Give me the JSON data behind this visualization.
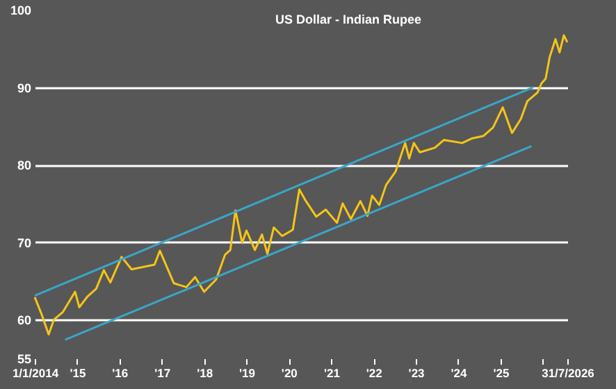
{
  "chart_data": {
    "type": "line",
    "title": "US Dollar - Indian Rupee",
    "xlim": [
      "2014-01-01",
      "2026-07-31"
    ],
    "xticks": [
      {
        "value": "2014-01-01",
        "label": "1/1/2014"
      },
      {
        "value": "2015-01-01",
        "label": "'15"
      },
      {
        "value": "2016-01-01",
        "label": "'16"
      },
      {
        "value": "2017-01-01",
        "label": "'17"
      },
      {
        "value": "2018-01-01",
        "label": "'18"
      },
      {
        "value": "2019-01-01",
        "label": "'19"
      },
      {
        "value": "2020-01-01",
        "label": "'20"
      },
      {
        "value": "2021-01-01",
        "label": "'21"
      },
      {
        "value": "2022-01-01",
        "label": "'22"
      },
      {
        "value": "2023-01-01",
        "label": "'23"
      },
      {
        "value": "2024-01-01",
        "label": "'24"
      },
      {
        "value": "2025-01-01",
        "label": "'25"
      },
      {
        "value": "2026-01-01",
        "label": null
      },
      {
        "value": "2026-07-31",
        "label": "31/7/2026"
      }
    ],
    "ylim": [
      55,
      100
    ],
    "yticks": [
      55,
      60,
      70,
      80,
      90,
      100
    ],
    "grid": "y",
    "series": [
      {
        "color": "#f5c518",
        "x": [
          "2014-01-01",
          "2014-03-01",
          "2014-05-01",
          "2014-06-15",
          "2014-09-01",
          "2014-12-15",
          "2015-01-20",
          "2015-04-01",
          "2015-06-15",
          "2015-08-20",
          "2015-10-15",
          "2016-01-20",
          "2016-04-15",
          "2016-10-30",
          "2016-12-15",
          "2017-04-15",
          "2017-08-01",
          "2017-10-15",
          "2018-01-01",
          "2018-04-15",
          "2018-07-01",
          "2018-08-15",
          "2018-09-28",
          "2018-11-25",
          "2019-01-01",
          "2019-03-15",
          "2019-05-15",
          "2019-07-01",
          "2019-08-25",
          "2019-11-05",
          "2020-02-05",
          "2020-04-01",
          "2020-05-20",
          "2020-08-25",
          "2020-11-15",
          "2021-02-20",
          "2021-04-10",
          "2021-06-20",
          "2021-09-10",
          "2021-11-10",
          "2021-12-20",
          "2022-02-20",
          "2022-04-20",
          "2022-07-10",
          "2022-10-01",
          "2022-11-05",
          "2022-12-15",
          "2023-02-05",
          "2023-06-15",
          "2023-09-01",
          "2024-02-05",
          "2024-05-01",
          "2024-08-05",
          "2024-10-28",
          "2025-01-20",
          "2025-02-25",
          "2025-04-10",
          "2025-06-25",
          "2025-08-20",
          "2025-11-15",
          "2025-12-20",
          "2026-01-25",
          "2026-03-01",
          "2026-04-20",
          "2026-05-25",
          "2026-07-01",
          "2026-07-31"
        ],
        "values": [
          62.9,
          60.7,
          58.1,
          60.0,
          61.0,
          63.6,
          61.6,
          63.0,
          64.0,
          66.4,
          64.8,
          68.1,
          66.5,
          67.1,
          68.9,
          64.7,
          64.2,
          65.5,
          63.6,
          65.2,
          68.4,
          69.0,
          74.1,
          69.9,
          71.5,
          69.0,
          71.0,
          68.5,
          71.9,
          70.8,
          71.6,
          76.8,
          75.5,
          73.3,
          74.2,
          72.5,
          75.0,
          73.0,
          75.3,
          73.4,
          76.0,
          74.8,
          77.4,
          79.1,
          82.8,
          80.8,
          82.8,
          81.6,
          82.2,
          83.2,
          82.8,
          83.4,
          83.7,
          84.8,
          87.4,
          85.9,
          84.1,
          85.9,
          88.2,
          89.3,
          90.5,
          91.1,
          93.9,
          96.2,
          94.5,
          96.7,
          95.8
        ]
      },
      {
        "type": "line",
        "color": "#3aa6c9",
        "x": [
          "2014-01-01",
          "2025-10-10"
        ],
        "values": [
          63.1,
          90.0
        ]
      },
      {
        "type": "line",
        "color": "#3aa6c9",
        "x": [
          "2014-09-20",
          "2025-09-25"
        ],
        "values": [
          57.4,
          82.4
        ]
      }
    ]
  }
}
